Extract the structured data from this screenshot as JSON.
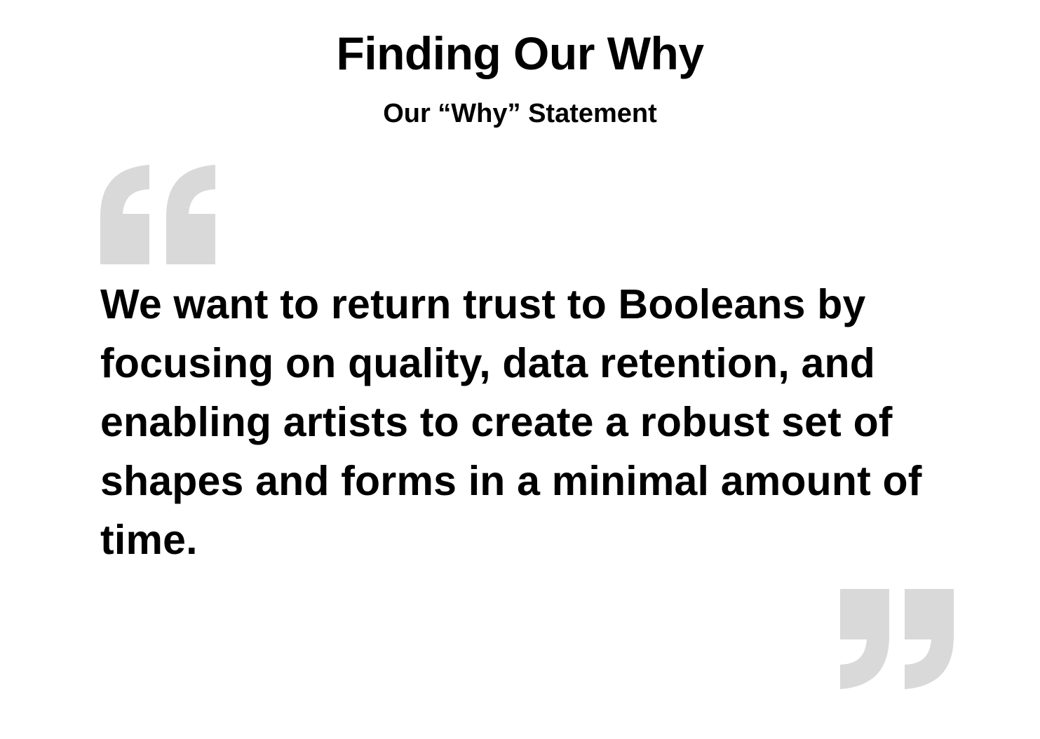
{
  "slide": {
    "title": "Finding Our Why",
    "subtitle": "Our “Why” Statement",
    "statement": "We want to return trust to Booleans by focusing on quality, data retention, and enabling artists to create a robust set of shapes and forms in a minimal amount of time.",
    "quote_mark_color": "#d9d9d9",
    "text_color": "#000000",
    "background_color": "#ffffff",
    "icons": {
      "open_quote": "open-quote-icon",
      "close_quote": "close-quote-icon"
    }
  }
}
